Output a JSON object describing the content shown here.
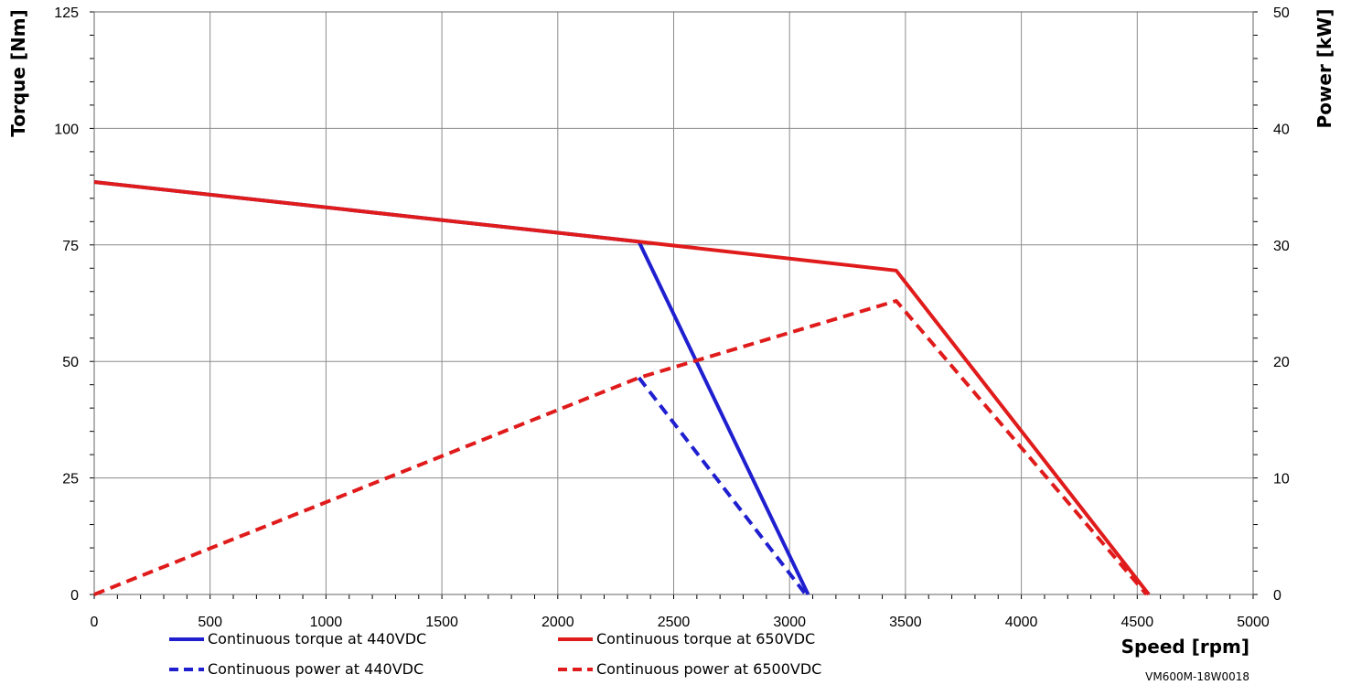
{
  "chart_data": {
    "type": "line",
    "xlabel": "Speed [rpm]",
    "ylabel_left": "Torque [Nm]",
    "ylabel_right": "Power [kW]",
    "xlim": [
      0,
      5000
    ],
    "x_ticks": [
      0,
      500,
      1000,
      1500,
      2000,
      2500,
      3000,
      3500,
      4000,
      4500,
      5000
    ],
    "ylim_left": [
      0,
      125
    ],
    "y_ticks_left": [
      0,
      25,
      50,
      75,
      100,
      125
    ],
    "ylim_right": [
      0,
      50
    ],
    "y_ticks_right": [
      0,
      10,
      20,
      30,
      40,
      50
    ],
    "grid": true,
    "legend_position": "bottom",
    "footnote": "VM600M-18W0018",
    "series": [
      {
        "name": "Continuous torque at 440VDC",
        "axis": "left",
        "color": "#1f1fd0",
        "style": "solid",
        "points": [
          [
            0,
            88.5
          ],
          [
            2350,
            75.7
          ],
          [
            3080,
            0
          ]
        ]
      },
      {
        "name": "Continuous torque at 650VDC",
        "axis": "left",
        "color": "#e01b1b",
        "style": "solid",
        "points": [
          [
            0,
            88.5
          ],
          [
            2350,
            75.7
          ],
          [
            3460,
            69.5
          ],
          [
            4550,
            0
          ]
        ]
      },
      {
        "name": "Continuous power at 440VDC",
        "axis": "right",
        "color": "#1f1fd0",
        "style": "dashed",
        "points": [
          [
            2350,
            18.6
          ],
          [
            3070,
            0
          ]
        ]
      },
      {
        "name": "Continuous power at 6500VDC",
        "axis": "right",
        "color": "#e01b1b",
        "style": "dashed",
        "points": [
          [
            0,
            0
          ],
          [
            2350,
            18.6
          ],
          [
            3460,
            25.2
          ],
          [
            4540,
            0
          ]
        ]
      }
    ]
  }
}
